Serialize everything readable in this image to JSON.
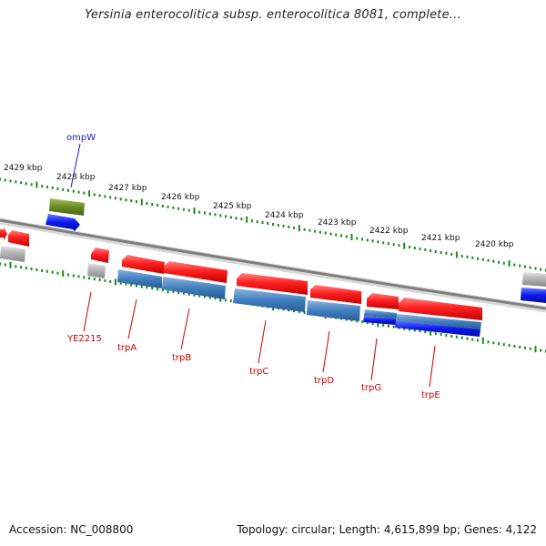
{
  "title": "Yersinia enterocolitica subsp. enterocolitica 8081, complete...",
  "footer": {
    "accession": "Accession: NC_008800",
    "summary": "Topology: circular; Length: 4,615,899 bp; Genes: 4,122"
  },
  "colors": {
    "backbone": "#7f7f7f",
    "tick": "#1a8a1a",
    "cds_forward": "#ee1111",
    "gene_forward": "#3f7fc0",
    "cds_reverse": "#0a1aee",
    "pseudo": "#aaaaaa",
    "ompW_cds": "#6a8a22",
    "label_red": "#cc0000",
    "label_blue": "#1a1acc"
  },
  "scale_labels": [
    "2429 kbp",
    "2428 kbp",
    "2427 kbp",
    "2426 kbp",
    "2425 kbp",
    "2424 kbp",
    "2423 kbp",
    "2422 kbp",
    "2421 kbp",
    "2420 kbp"
  ],
  "gene_labels": [
    {
      "name": "ompW",
      "color": "blue"
    },
    {
      "name": "YE2215",
      "color": "red"
    },
    {
      "name": "trpA",
      "color": "red"
    },
    {
      "name": "trpB",
      "color": "red"
    },
    {
      "name": "trpC",
      "color": "red"
    },
    {
      "name": "trpD",
      "color": "red"
    },
    {
      "name": "trpG",
      "color": "red"
    },
    {
      "name": "trpE",
      "color": "red"
    }
  ]
}
